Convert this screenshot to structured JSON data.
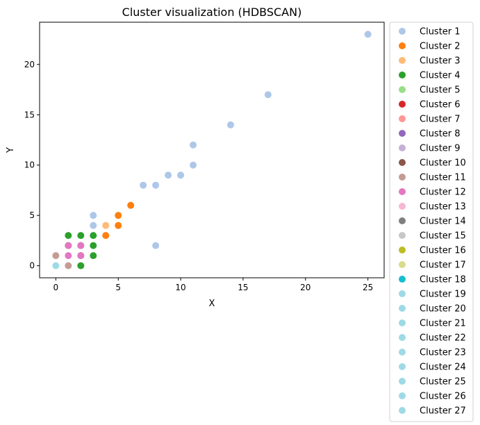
{
  "chart_data": {
    "type": "scatter",
    "title": "Cluster visualization (HDBSCAN)",
    "xlabel": "X",
    "ylabel": "Y",
    "xlim": [
      -1.3,
      26.3
    ],
    "ylim": [
      -1.2,
      24.2
    ],
    "xticks": [
      0,
      5,
      10,
      15,
      20,
      25
    ],
    "yticks": [
      0,
      5,
      10,
      15,
      20
    ],
    "grid": false,
    "legend_position": "outside-right",
    "series": [
      {
        "name": "Cluster 1",
        "color": "#aec7e8",
        "points": [
          [
            25,
            23
          ],
          [
            17,
            17
          ],
          [
            14,
            14
          ],
          [
            11,
            12
          ],
          [
            11,
            10
          ],
          [
            10,
            9
          ],
          [
            9,
            9
          ],
          [
            8,
            8
          ],
          [
            7,
            8
          ],
          [
            3,
            5
          ],
          [
            3,
            4
          ],
          [
            8,
            2
          ]
        ]
      },
      {
        "name": "Cluster 2",
        "color": "#ff7f0e",
        "points": [
          [
            6,
            6
          ],
          [
            5,
            5
          ],
          [
            5,
            4
          ],
          [
            4,
            3
          ]
        ]
      },
      {
        "name": "Cluster 3",
        "color": "#ffbb78",
        "points": [
          [
            4,
            4
          ]
        ]
      },
      {
        "name": "Cluster 4",
        "color": "#2ca02c",
        "points": [
          [
            1,
            3
          ],
          [
            2,
            3
          ],
          [
            3,
            3
          ],
          [
            1,
            2
          ],
          [
            2,
            2
          ],
          [
            3,
            2
          ],
          [
            2,
            1
          ],
          [
            3,
            1
          ],
          [
            2,
            0
          ]
        ]
      },
      {
        "name": "Cluster 5",
        "color": "#98df8a",
        "points": []
      },
      {
        "name": "Cluster 6",
        "color": "#d62728",
        "points": []
      },
      {
        "name": "Cluster 7",
        "color": "#ff9896",
        "points": []
      },
      {
        "name": "Cluster 8",
        "color": "#9467bd",
        "points": []
      },
      {
        "name": "Cluster 9",
        "color": "#c5b0d5",
        "points": []
      },
      {
        "name": "Cluster 10",
        "color": "#8c564b",
        "points": []
      },
      {
        "name": "Cluster 11",
        "color": "#c49c94",
        "points": [
          [
            0,
            1
          ],
          [
            1,
            0
          ]
        ]
      },
      {
        "name": "Cluster 12",
        "color": "#e377c2",
        "points": [
          [
            1,
            2
          ],
          [
            2,
            2
          ],
          [
            1,
            1
          ],
          [
            2,
            1
          ]
        ]
      },
      {
        "name": "Cluster 13",
        "color": "#f7b6d2",
        "points": []
      },
      {
        "name": "Cluster 14",
        "color": "#7f7f7f",
        "points": []
      },
      {
        "name": "Cluster 15",
        "color": "#c7c7c7",
        "points": []
      },
      {
        "name": "Cluster 16",
        "color": "#bcbd22",
        "points": []
      },
      {
        "name": "Cluster 17",
        "color": "#dbdb8d",
        "points": []
      },
      {
        "name": "Cluster 18",
        "color": "#17becf",
        "points": []
      },
      {
        "name": "Cluster 19",
        "color": "#9edae5",
        "points": []
      },
      {
        "name": "Cluster 20",
        "color": "#9edae5",
        "points": []
      },
      {
        "name": "Cluster 21",
        "color": "#9edae5",
        "points": []
      },
      {
        "name": "Cluster 22",
        "color": "#9edae5",
        "points": []
      },
      {
        "name": "Cluster 23",
        "color": "#9edae5",
        "points": []
      },
      {
        "name": "Cluster 24",
        "color": "#9edae5",
        "points": []
      },
      {
        "name": "Cluster 25",
        "color": "#9edae5",
        "points": []
      },
      {
        "name": "Cluster 26",
        "color": "#9edae5",
        "points": []
      },
      {
        "name": "Cluster 27",
        "color": "#9edae5",
        "points": [
          [
            0,
            0
          ]
        ]
      }
    ]
  }
}
